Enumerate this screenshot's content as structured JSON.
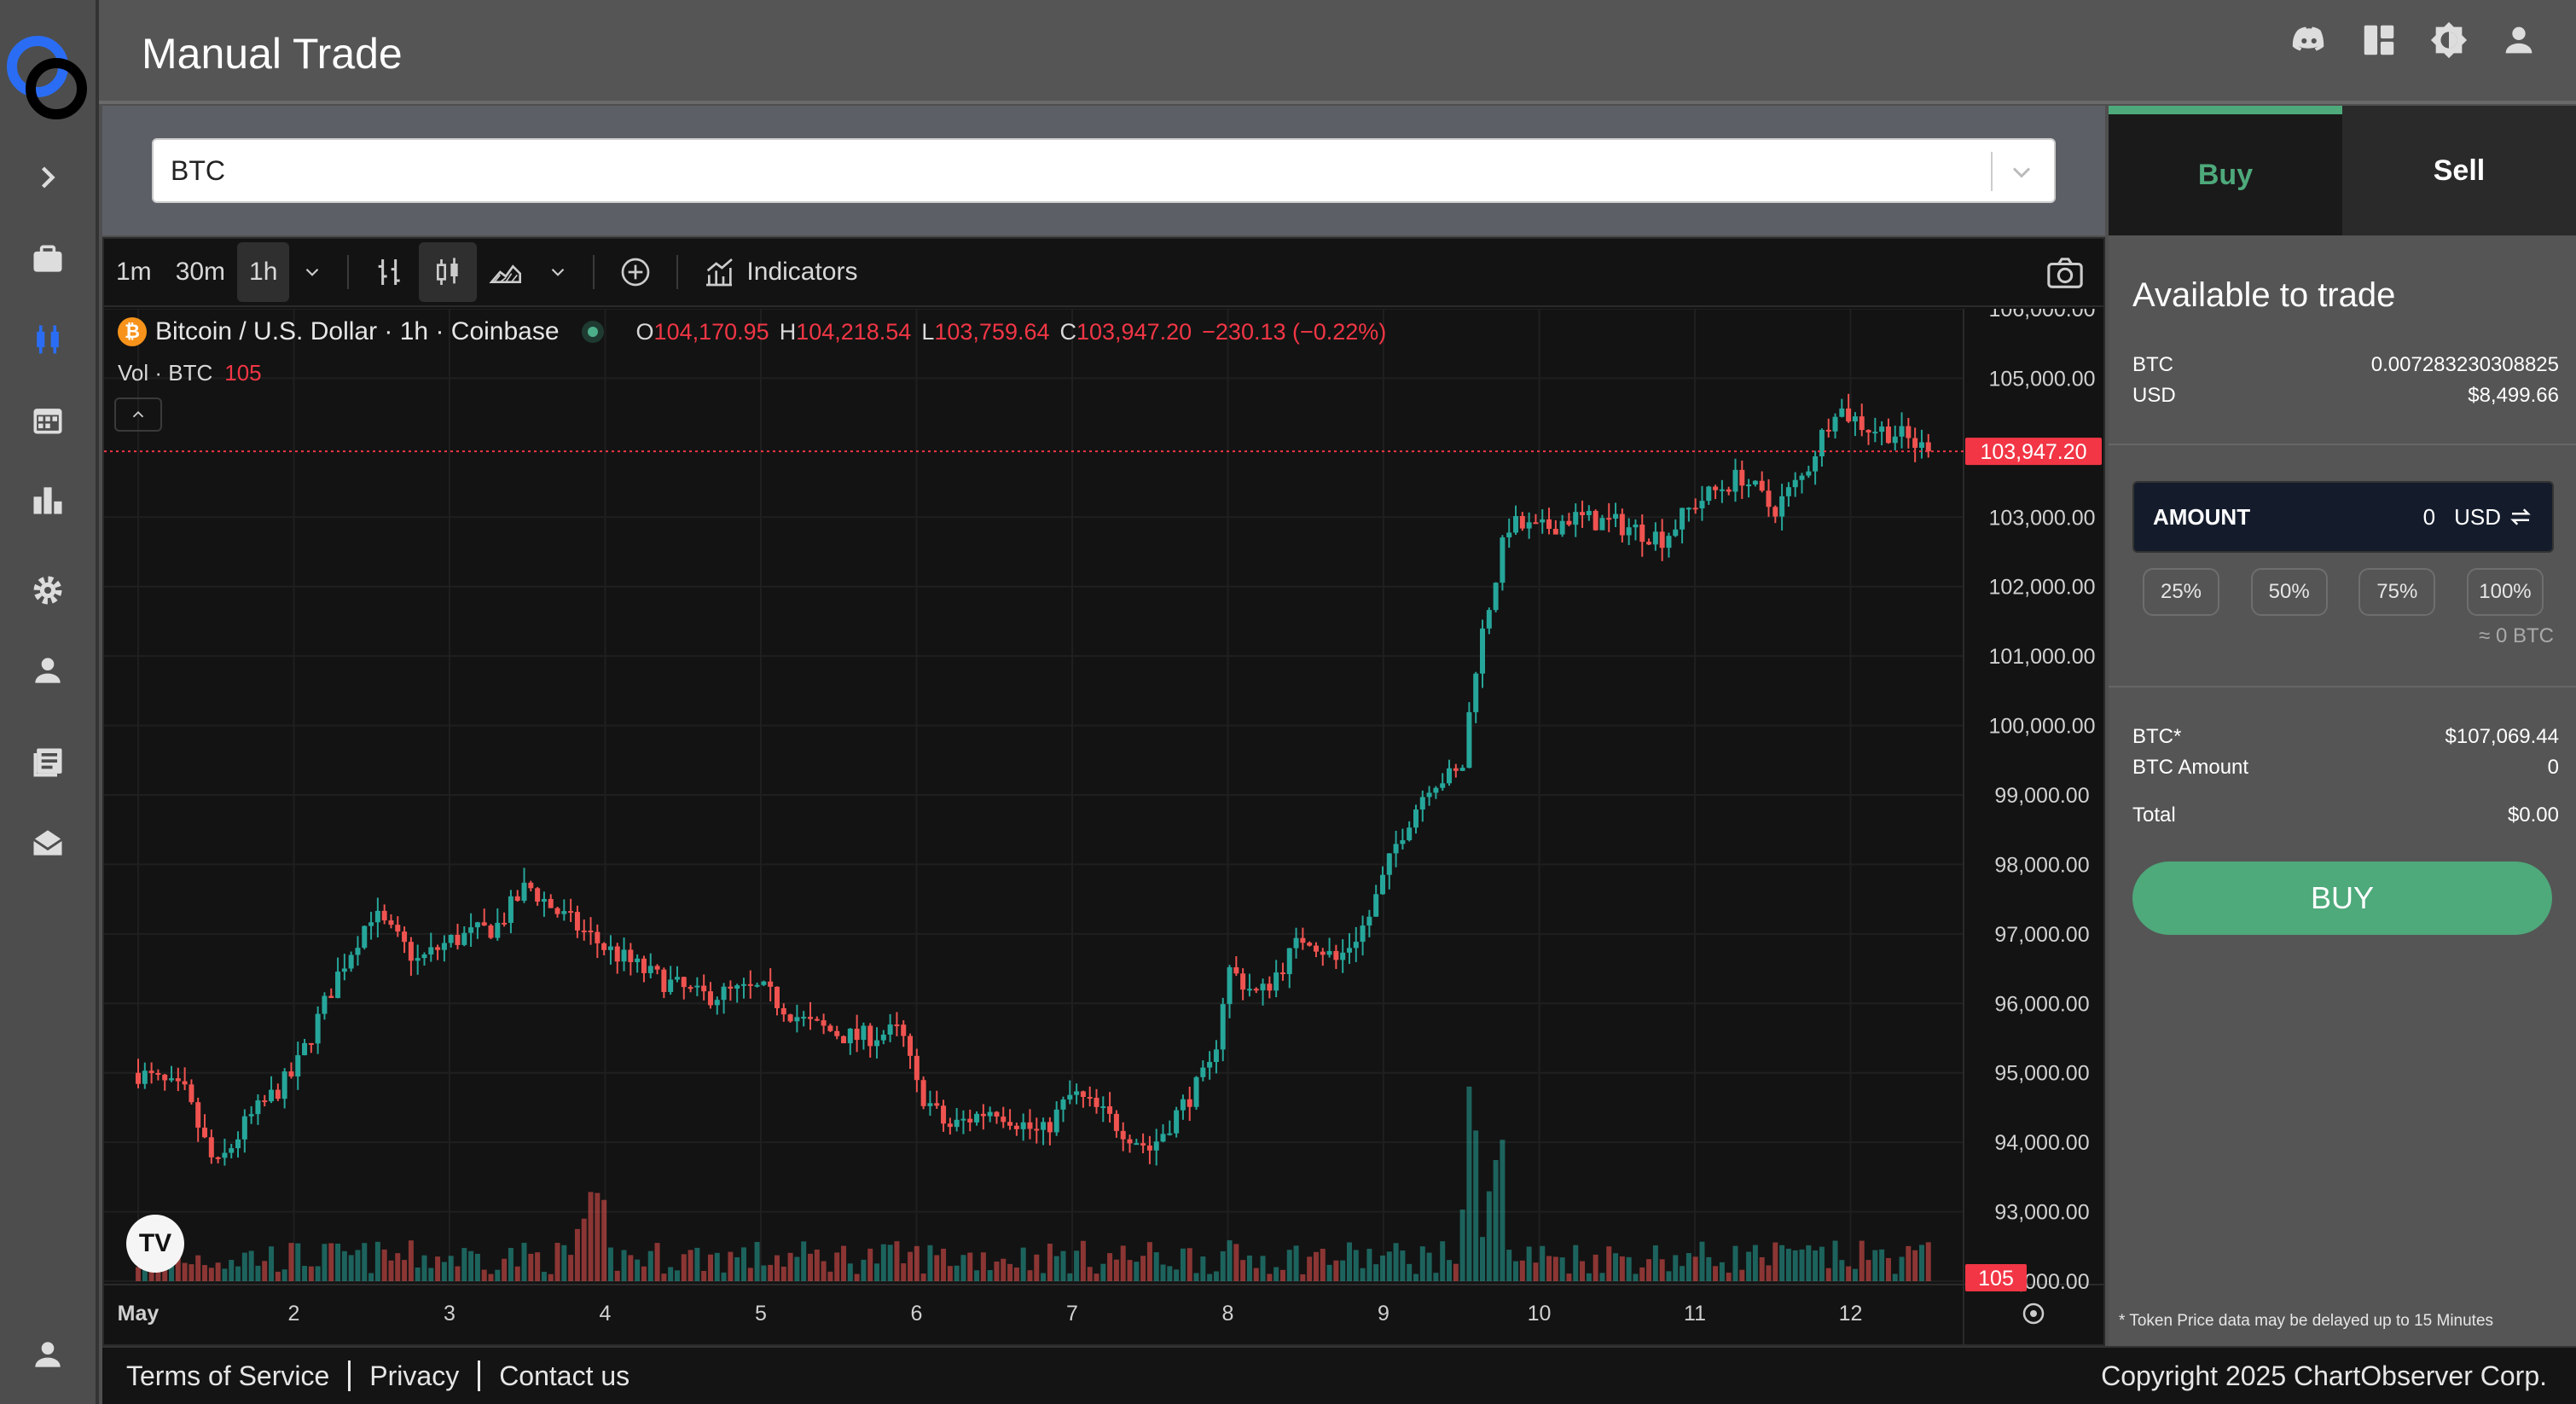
{
  "header": {
    "title": "Manual Trade"
  },
  "sidebar": {
    "items": [
      "expand",
      "portfolio",
      "trade",
      "calendar",
      "analytics",
      "settings",
      "profile",
      "news",
      "messages",
      "account"
    ]
  },
  "selector": {
    "value": "BTC"
  },
  "toolbar": {
    "intervals": [
      "1m",
      "30m",
      "1h"
    ],
    "active_interval": "1h",
    "indicators_label": "Indicators"
  },
  "legend": {
    "symbol": "Bitcoin / U.S. Dollar · 1h · Coinbase",
    "o_label": "O",
    "o": "104,170.95",
    "h_label": "H",
    "h": "104,218.54",
    "l_label": "L",
    "l": "103,759.64",
    "c_label": "C",
    "c": "103,947.20",
    "change": "−230.13 (−0.22%)",
    "vol_label": "Vol · BTC",
    "vol": "105"
  },
  "chart_data": {
    "type": "candlestick",
    "title": "Bitcoin / U.S. Dollar · 1h · Coinbase",
    "x_ticks": [
      "May",
      "2",
      "3",
      "4",
      "5",
      "6",
      "7",
      "8",
      "9",
      "10",
      "11",
      "12"
    ],
    "y_ticks": [
      "106,000.00",
      "105,000.00",
      "103,000.00",
      "102,000.00",
      "101,000.00",
      "100,000.00",
      "99,000.00",
      "98,000.00",
      "97,000.00",
      "96,000.00",
      "95,000.00",
      "94,000.00",
      "93,000.00",
      "92,000.00"
    ],
    "ylim": [
      92000,
      106000
    ],
    "last_price": 103947.2,
    "last_price_label": "103,947.20",
    "last_volume_label": "105",
    "close_path": [
      [
        0.0,
        95000
      ],
      [
        0.3,
        94700
      ],
      [
        0.5,
        93600
      ],
      [
        0.7,
        94300
      ],
      [
        1.0,
        95000
      ],
      [
        1.3,
        96500
      ],
      [
        1.5,
        97300
      ],
      [
        1.8,
        96600
      ],
      [
        2.0,
        96900
      ],
      [
        2.3,
        97100
      ],
      [
        2.5,
        97700
      ],
      [
        2.7,
        97300
      ],
      [
        3.0,
        96800
      ],
      [
        3.3,
        96400
      ],
      [
        3.6,
        96100
      ],
      [
        4.0,
        96200
      ],
      [
        4.3,
        95700
      ],
      [
        4.6,
        95500
      ],
      [
        4.9,
        95600
      ],
      [
        5.0,
        94800
      ],
      [
        5.2,
        94200
      ],
      [
        5.5,
        94500
      ],
      [
        5.8,
        94100
      ],
      [
        6.0,
        94700
      ],
      [
        6.2,
        94400
      ],
      [
        6.5,
        93900
      ],
      [
        6.7,
        94500
      ],
      [
        6.9,
        95100
      ],
      [
        7.0,
        96500
      ],
      [
        7.2,
        96100
      ],
      [
        7.5,
        97000
      ],
      [
        7.7,
        96600
      ],
      [
        7.9,
        97200
      ],
      [
        8.1,
        98400
      ],
      [
        8.3,
        99200
      ],
      [
        8.5,
        99300
      ],
      [
        8.6,
        101000
      ],
      [
        8.8,
        102900
      ],
      [
        9.0,
        102800
      ],
      [
        9.2,
        103000
      ],
      [
        9.5,
        102900
      ],
      [
        9.8,
        102700
      ],
      [
        10.0,
        103200
      ],
      [
        10.3,
        103600
      ],
      [
        10.5,
        103100
      ],
      [
        10.7,
        103600
      ],
      [
        10.9,
        104600
      ],
      [
        11.1,
        104300
      ],
      [
        11.3,
        104200
      ],
      [
        11.5,
        103947
      ]
    ]
  },
  "trade": {
    "tab_buy": "Buy",
    "tab_sell": "Sell",
    "available_title": "Available to trade",
    "btc_label": "BTC",
    "btc_value": "0.007283230308825",
    "usd_label": "USD",
    "usd_value": "$8,499.66",
    "amount_label": "AMOUNT",
    "amount_value": "0",
    "amount_unit": "USD",
    "pcts": [
      "25%",
      "50%",
      "75%",
      "100%"
    ],
    "approx": "≈ 0 BTC",
    "price_label": "BTC*",
    "price_value": "$107,069.44",
    "btc_amount_label": "BTC Amount",
    "btc_amount_value": "0",
    "total_label": "Total",
    "total_value": "$0.00",
    "buy_button": "BUY",
    "disclaimer": "* Token Price data may be delayed up to 15 Minutes"
  },
  "footer": {
    "terms": "Terms of Service",
    "privacy": "Privacy",
    "contact": "Contact us",
    "copyright": "Copyright 2025 ChartObserver Corp."
  },
  "colors": {
    "up": "#26a69a",
    "down": "#ef5350",
    "accent": "#4ea97b",
    "price_tag": "#f23645"
  }
}
